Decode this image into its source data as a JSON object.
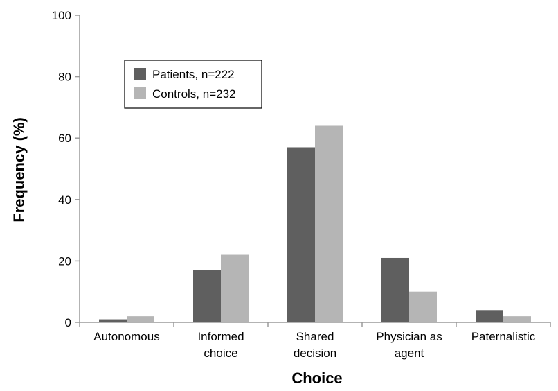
{
  "chart_data": {
    "type": "bar",
    "title": "",
    "xlabel": "Choice",
    "ylabel": "Frequency (%)",
    "ylim": [
      0,
      100
    ],
    "yticks": [
      "0",
      "20",
      "40",
      "60",
      "80",
      "100"
    ],
    "categories": [
      [
        "Autonomous"
      ],
      [
        "Informed",
        "choice"
      ],
      [
        "Shared",
        "decision"
      ],
      [
        "Physician as",
        "agent"
      ],
      [
        "Paternalistic"
      ]
    ],
    "series": [
      {
        "name": "Patients, n=222",
        "color": "#5f5f5f",
        "values": [
          1,
          17,
          57,
          21,
          4
        ]
      },
      {
        "name": "Controls, n=232",
        "color": "#b5b5b5",
        "values": [
          2,
          22,
          64,
          10,
          2
        ]
      }
    ],
    "legend_position": "top-left",
    "grid": false
  }
}
